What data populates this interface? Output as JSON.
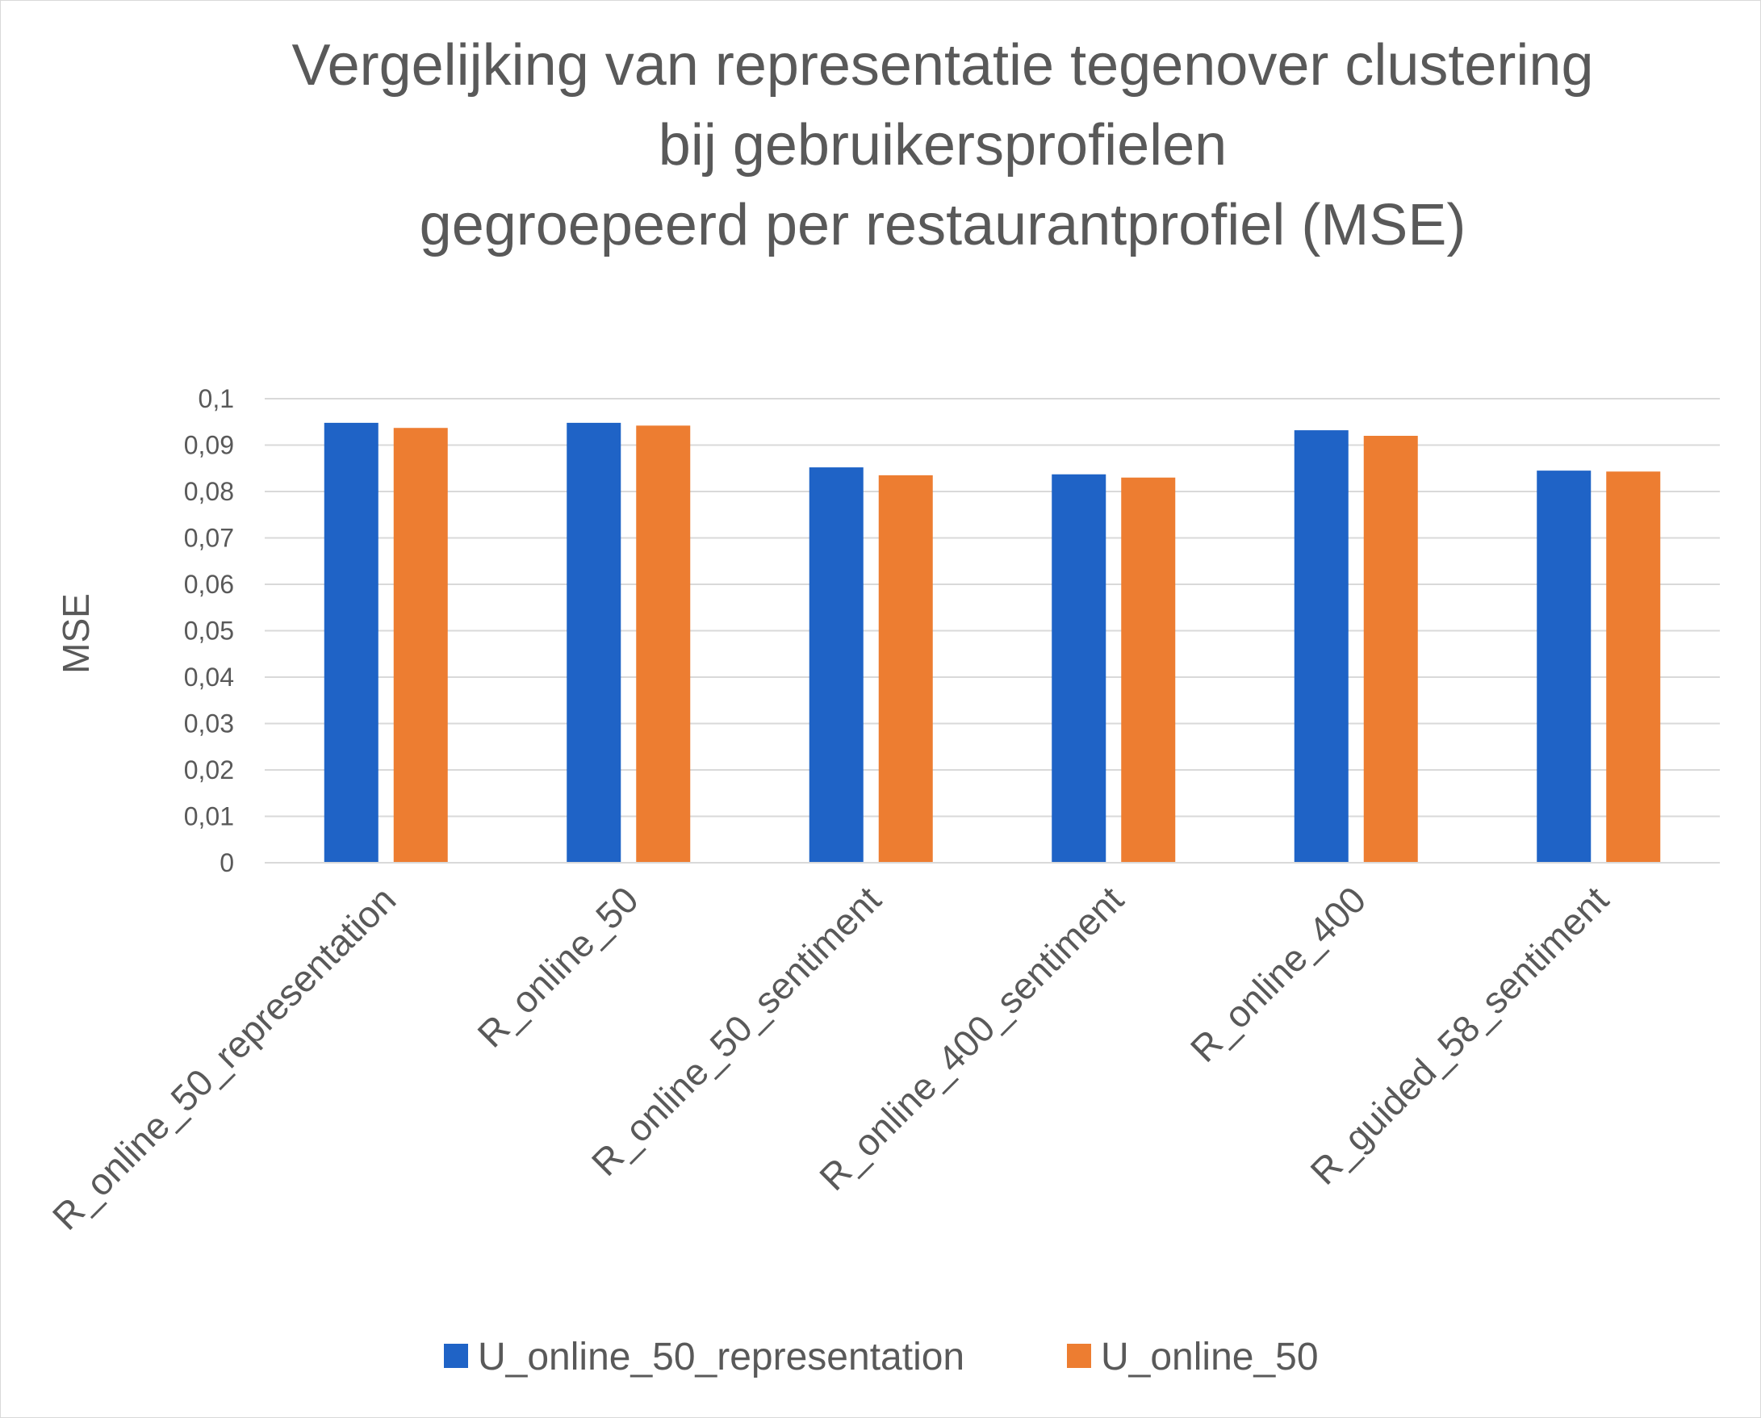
{
  "chart_data": {
    "type": "bar",
    "title": [
      "Vergelijking van representatie tegenover clustering",
      "bij gebruikersprofielen",
      "gegroepeerd per restaurantprofiel (MSE)"
    ],
    "xlabel": "",
    "ylabel": "MSE",
    "ylim": [
      0,
      0.1
    ],
    "yticks": [
      "0",
      "0,01",
      "0,02",
      "0,03",
      "0,04",
      "0,05",
      "0,06",
      "0,07",
      "0,08",
      "0,09",
      "0,1"
    ],
    "grid": true,
    "legend_position": "bottom",
    "categories": [
      "R_online_50_representation",
      "R_online_50",
      "R_online_50_sentiment",
      "R_online_400_sentiment",
      "R_online_400",
      "R_guided_58_sentiment"
    ],
    "series": [
      {
        "name": "U_online_50_representation",
        "color": "#1f63c6",
        "values": [
          0.0948,
          0.0948,
          0.0852,
          0.0837,
          0.0932,
          0.0845
        ]
      },
      {
        "name": "U_online_50",
        "color": "#ed7d31",
        "values": [
          0.0937,
          0.0942,
          0.0835,
          0.083,
          0.092,
          0.0843
        ]
      }
    ]
  }
}
